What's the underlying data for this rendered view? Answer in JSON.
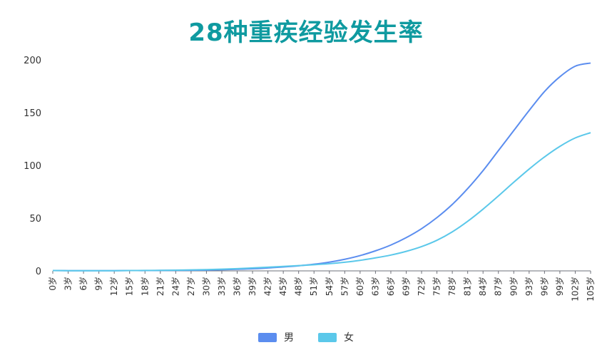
{
  "chart_data": {
    "type": "line",
    "title": "28种重疾经验发生率",
    "xlabel": "",
    "ylabel": "",
    "ylim": [
      0,
      200
    ],
    "yticks": [
      0,
      50,
      100,
      150,
      200
    ],
    "grid": false,
    "legend_position": "bottom-center",
    "x": [
      0,
      3,
      6,
      9,
      12,
      15,
      18,
      21,
      24,
      27,
      30,
      33,
      36,
      39,
      42,
      45,
      48,
      51,
      54,
      57,
      60,
      63,
      66,
      69,
      72,
      75,
      78,
      81,
      84,
      87,
      90,
      93,
      96,
      99,
      102,
      105
    ],
    "x_labels": [
      "0岁",
      "3岁",
      "6岁",
      "9岁",
      "12岁",
      "15岁",
      "18岁",
      "21岁",
      "24岁",
      "27岁",
      "30岁",
      "33岁",
      "36岁",
      "39岁",
      "42岁",
      "45岁",
      "48岁",
      "51岁",
      "54岁",
      "57岁",
      "60岁",
      "63岁",
      "66岁",
      "69岁",
      "72岁",
      "75岁",
      "78岁",
      "81岁",
      "84岁",
      "87岁",
      "90岁",
      "93岁",
      "96岁",
      "99岁",
      "102岁",
      "105岁"
    ],
    "series": [
      {
        "name": "男",
        "color": "#5b8def",
        "values": [
          0.3,
          0.2,
          0.2,
          0.2,
          0.2,
          0.3,
          0.3,
          0.4,
          0.5,
          0.6,
          0.8,
          1.1,
          1.5,
          2.0,
          2.8,
          3.7,
          4.8,
          6.3,
          8.3,
          11.0,
          14.5,
          19.0,
          24.5,
          31.5,
          40.0,
          50.5,
          63.0,
          78.0,
          95.0,
          114.0,
          133.0,
          152.0,
          170.0,
          184.0,
          194.0,
          197.0
        ]
      },
      {
        "name": "女",
        "color": "#5bc8ea",
        "values": [
          0.3,
          0.2,
          0.2,
          0.2,
          0.2,
          0.3,
          0.4,
          0.5,
          0.7,
          0.9,
          1.2,
          1.6,
          2.1,
          2.8,
          3.5,
          4.2,
          5.0,
          5.8,
          6.8,
          8.2,
          10.0,
          12.3,
          15.0,
          18.5,
          23.0,
          29.0,
          37.0,
          47.0,
          58.5,
          71.0,
          84.0,
          96.5,
          108.0,
          118.0,
          126.0,
          131.0
        ]
      }
    ]
  }
}
